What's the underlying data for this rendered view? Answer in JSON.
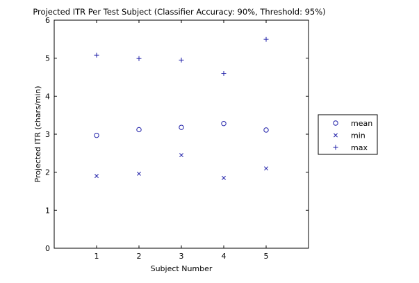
{
  "chart_data": {
    "type": "scatter",
    "title": "Projected ITR Per Test Subject (Classifier Accuracy: 90%, Threshold: 95%)",
    "xlabel": "Subject Number",
    "ylabel": "Projected ITR (chars/min)",
    "xlim": [
      0,
      6
    ],
    "ylim": [
      0,
      6
    ],
    "xticks": [
      1,
      2,
      3,
      4,
      5
    ],
    "yticks": [
      0,
      1,
      2,
      3,
      4,
      5,
      6
    ],
    "grid": false,
    "legend_position": "right",
    "color": "#1f1fa8",
    "series": [
      {
        "name": "mean",
        "marker": "circle",
        "x": [
          1,
          2,
          3,
          4,
          5
        ],
        "y": [
          2.97,
          3.12,
          3.18,
          3.28,
          3.11
        ]
      },
      {
        "name": "min",
        "marker": "x",
        "x": [
          1,
          2,
          3,
          4,
          5
        ],
        "y": [
          1.9,
          1.96,
          2.45,
          1.85,
          2.1
        ]
      },
      {
        "name": "max",
        "marker": "plus",
        "x": [
          1,
          2,
          3,
          4,
          5
        ],
        "y": [
          5.08,
          4.99,
          4.95,
          4.6,
          5.5
        ]
      }
    ]
  }
}
